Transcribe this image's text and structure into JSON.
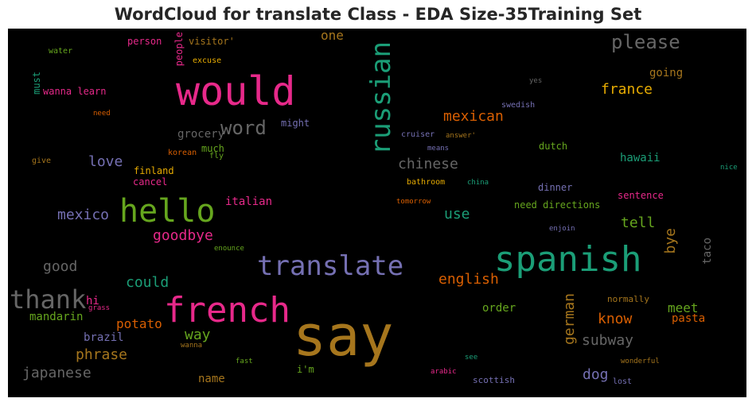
{
  "chart_data": {
    "type": "wordcloud",
    "title": "WordCloud for translate Class - EDA Size-35Training Set",
    "background": "#000000",
    "palette": [
      "#1b9e77",
      "#d95f02",
      "#7570b3",
      "#e7298a",
      "#66a61e",
      "#e6ab02",
      "#a6761d",
      "#666666"
    ],
    "words": [
      {
        "text": "say",
        "color": "#a6761d",
        "vertical": false
      },
      {
        "text": "french",
        "color": "#e7298a",
        "vertical": false
      },
      {
        "text": "spanish",
        "color": "#1b9e77",
        "vertical": false
      },
      {
        "text": "would",
        "color": "#e7298a",
        "vertical": false
      },
      {
        "text": "hello",
        "color": "#66a61e",
        "vertical": false
      },
      {
        "text": "translate",
        "color": "#7570b3",
        "vertical": false
      },
      {
        "text": "russian",
        "color": "#1b9e77",
        "vertical": true
      },
      {
        "text": "thank",
        "color": "#666666",
        "vertical": false
      },
      {
        "text": "please",
        "color": "#666666",
        "vertical": false
      },
      {
        "text": "word",
        "color": "#666666",
        "vertical": false
      },
      {
        "text": "france",
        "color": "#e6ab02",
        "vertical": false
      },
      {
        "text": "mexican",
        "color": "#d95f02",
        "vertical": false
      },
      {
        "text": "english",
        "color": "#d95f02",
        "vertical": false
      },
      {
        "text": "chinese",
        "color": "#666666",
        "vertical": false
      },
      {
        "text": "mexico",
        "color": "#7570b3",
        "vertical": false
      },
      {
        "text": "goodbye",
        "color": "#e7298a",
        "vertical": false
      },
      {
        "text": "good",
        "color": "#666666",
        "vertical": false
      },
      {
        "text": "could",
        "color": "#1b9e77",
        "vertical": false
      },
      {
        "text": "love",
        "color": "#7570b3",
        "vertical": false
      },
      {
        "text": "use",
        "color": "#1b9e77",
        "vertical": false
      },
      {
        "text": "tell",
        "color": "#66a61e",
        "vertical": false
      },
      {
        "text": "german",
        "color": "#a6761d",
        "vertical": true
      },
      {
        "text": "know",
        "color": "#d95f02",
        "vertical": false
      },
      {
        "text": "subway",
        "color": "#666666",
        "vertical": false
      },
      {
        "text": "dog",
        "color": "#7570b3",
        "vertical": false
      },
      {
        "text": "potato",
        "color": "#d95f02",
        "vertical": false
      },
      {
        "text": "phrase",
        "color": "#a6761d",
        "vertical": false
      },
      {
        "text": "japanese",
        "color": "#666666",
        "vertical": false
      },
      {
        "text": "way",
        "color": "#66a61e",
        "vertical": false
      },
      {
        "text": "bye",
        "color": "#a6761d",
        "vertical": true
      },
      {
        "text": "meet",
        "color": "#66a61e",
        "vertical": false
      },
      {
        "text": "one",
        "color": "#a6761d",
        "vertical": false
      },
      {
        "text": "grocery",
        "color": "#666666",
        "vertical": false
      },
      {
        "text": "italian",
        "color": "#e7298a",
        "vertical": false
      },
      {
        "text": "going",
        "color": "#a6761d",
        "vertical": false
      },
      {
        "text": "hawaii",
        "color": "#1b9e77",
        "vertical": false
      },
      {
        "text": "pasta",
        "color": "#d95f02",
        "vertical": false
      },
      {
        "text": "mandarin",
        "color": "#66a61e",
        "vertical": false
      },
      {
        "text": "name",
        "color": "#a6761d",
        "vertical": false
      },
      {
        "text": "brazil",
        "color": "#7570b3",
        "vertical": false
      },
      {
        "text": "order",
        "color": "#66a61e",
        "vertical": false
      },
      {
        "text": "taco",
        "color": "#666666",
        "vertical": true
      },
      {
        "text": "hi",
        "color": "#e7298a",
        "vertical": false
      },
      {
        "text": "dutch",
        "color": "#66a61e",
        "vertical": false
      },
      {
        "text": "dinner",
        "color": "#7570b3",
        "vertical": false
      },
      {
        "text": "sentence",
        "color": "#e7298a",
        "vertical": false
      },
      {
        "text": "need directions",
        "color": "#66a61e",
        "vertical": false
      },
      {
        "text": "wanna learn",
        "color": "#e7298a",
        "vertical": false
      },
      {
        "text": "person",
        "color": "#e7298a",
        "vertical": false
      },
      {
        "text": "visitor'",
        "color": "#a6761d",
        "vertical": false
      },
      {
        "text": "people",
        "color": "#e7298a",
        "vertical": true
      },
      {
        "text": "might",
        "color": "#7570b3",
        "vertical": false
      },
      {
        "text": "much",
        "color": "#66a61e",
        "vertical": false
      },
      {
        "text": "finland",
        "color": "#e6ab02",
        "vertical": false
      },
      {
        "text": "cancel",
        "color": "#e7298a",
        "vertical": false
      },
      {
        "text": "must",
        "color": "#1b9e77",
        "vertical": true
      },
      {
        "text": "normally",
        "color": "#a6761d",
        "vertical": false
      },
      {
        "text": "i'm",
        "color": "#66a61e",
        "vertical": false
      },
      {
        "text": "scottish",
        "color": "#7570b3",
        "vertical": false
      },
      {
        "text": "water",
        "color": "#66a61e",
        "vertical": false
      },
      {
        "text": "excuse",
        "color": "#e6ab02",
        "vertical": false
      },
      {
        "text": "need",
        "color": "#d95f02",
        "vertical": false
      },
      {
        "text": "give",
        "color": "#a6761d",
        "vertical": false
      },
      {
        "text": "korean",
        "color": "#d95f02",
        "vertical": false
      },
      {
        "text": "fly",
        "color": "#66a61e",
        "vertical": false
      },
      {
        "text": "yes",
        "color": "#666666",
        "vertical": false
      },
      {
        "text": "swedish",
        "color": "#7570b3",
        "vertical": false
      },
      {
        "text": "cruiser",
        "color": "#7570b3",
        "vertical": false
      },
      {
        "text": "answer'",
        "color": "#a6761d",
        "vertical": false
      },
      {
        "text": "means",
        "color": "#7570b3",
        "vertical": false
      },
      {
        "text": "bathroom",
        "color": "#e6ab02",
        "vertical": false
      },
      {
        "text": "china",
        "color": "#1b9e77",
        "vertical": false
      },
      {
        "text": "nice",
        "color": "#1b9e77",
        "vertical": false
      },
      {
        "text": "tomorrow",
        "color": "#d95f02",
        "vertical": false
      },
      {
        "text": "enjoin",
        "color": "#7570b3",
        "vertical": false
      },
      {
        "text": "enounce",
        "color": "#66a61e",
        "vertical": false
      },
      {
        "text": "grass",
        "color": "#e7298a",
        "vertical": false
      },
      {
        "text": "wanna",
        "color": "#a6761d",
        "vertical": false
      },
      {
        "text": "fast",
        "color": "#66a61e",
        "vertical": false
      },
      {
        "text": "see",
        "color": "#1b9e77",
        "vertical": false
      },
      {
        "text": "arabic",
        "color": "#e7298a",
        "vertical": false
      },
      {
        "text": "wonderful",
        "color": "#a6761d",
        "vertical": false
      },
      {
        "text": "lost",
        "color": "#7570b3",
        "vertical": false
      }
    ]
  }
}
